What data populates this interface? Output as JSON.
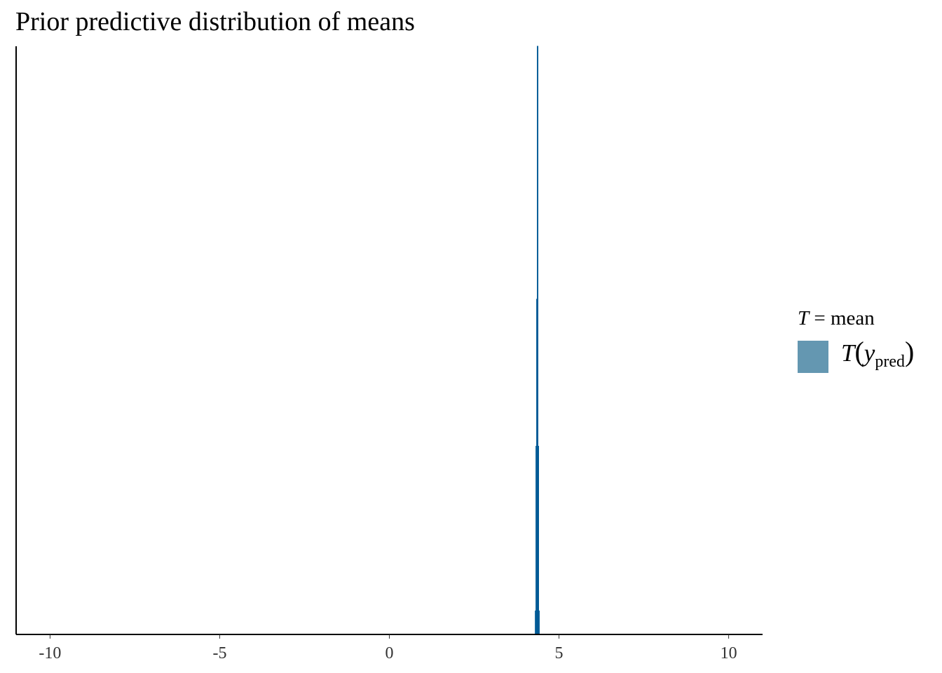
{
  "chart_data": {
    "type": "histogram",
    "title": "Prior predictive distribution of means",
    "xlabel": "",
    "ylabel": "",
    "xlim": [
      -11,
      11
    ],
    "x_ticks": [
      -10,
      -5,
      0,
      5,
      10
    ],
    "x_tick_labels": [
      "-10",
      "-5",
      "0",
      "5",
      "10"
    ],
    "y_axis_labels_shown": false,
    "grid": false,
    "legend_position": "right",
    "fill_color": "#6497b1",
    "outline_color": "#005b96",
    "bins": [
      {
        "x0": 4.3,
        "x1": 4.32,
        "density": 0.04
      },
      {
        "x0": 4.32,
        "x1": 4.34,
        "density": 0.32
      },
      {
        "x0": 4.34,
        "x1": 4.36,
        "density": 0.57
      },
      {
        "x0": 4.36,
        "x1": 4.38,
        "density": 1.0
      },
      {
        "x0": 4.38,
        "x1": 4.4,
        "density": 0.32
      },
      {
        "x0": 4.4,
        "x1": 4.42,
        "density": 0.04
      }
    ],
    "legend": {
      "title_prefix": "T",
      "title_rest": " = mean",
      "entry_fn": "T",
      "entry_var": "y",
      "entry_sub": "pred"
    }
  }
}
